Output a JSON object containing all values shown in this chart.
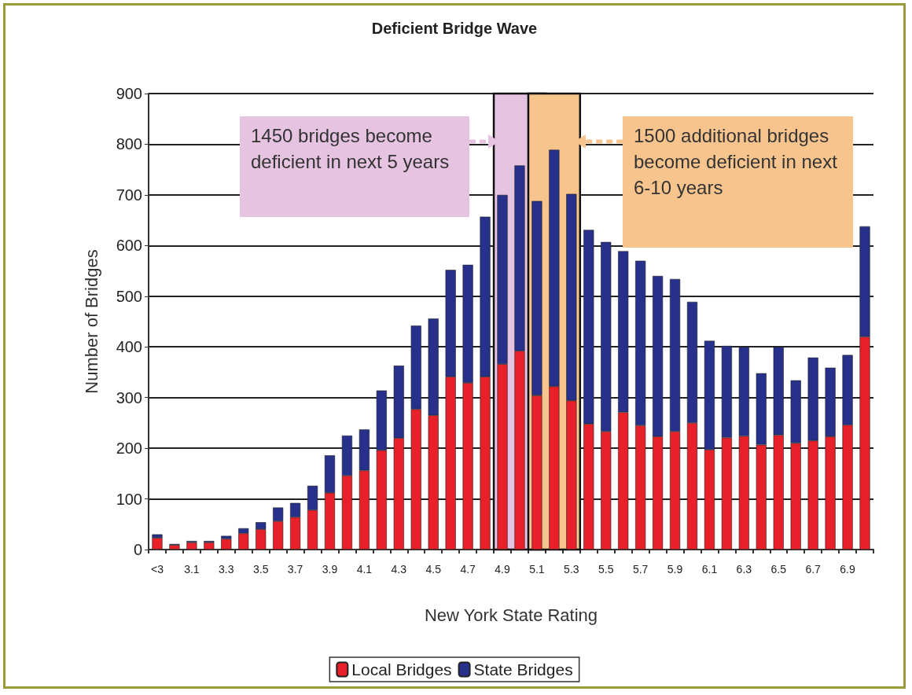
{
  "chart_data": {
    "type": "bar",
    "title": "Deficient Bridge Wave",
    "xlabel": "New York State Rating",
    "ylabel": "Number of Bridges",
    "categories": [
      "<3",
      null,
      "3.1",
      null,
      "3.3",
      null,
      "3.5",
      null,
      "3.7",
      null,
      "3.9",
      null,
      "4.1",
      null,
      "4.3",
      null,
      "4.5",
      null,
      "4.7",
      null,
      "4.9",
      null,
      "5.1",
      null,
      "5.3",
      null,
      "5.5",
      null,
      "5.7",
      null,
      "5.9",
      null,
      "6.1",
      null,
      "6.3",
      null,
      "6.5",
      null,
      "6.7",
      null,
      "6.9",
      null
    ],
    "stacked": true,
    "series": [
      {
        "name": "Local Bridges",
        "color": "#e8202a",
        "values": [
          23,
          9,
          14,
          14,
          21,
          32,
          40,
          56,
          64,
          78,
          112,
          146,
          156,
          196,
          220,
          277,
          265,
          341,
          329,
          341,
          366,
          392,
          304,
          322,
          294,
          248,
          233,
          271,
          245,
          223,
          233,
          250,
          197,
          221,
          224,
          207,
          226,
          210,
          215,
          223,
          246,
          420
        ]
      },
      {
        "name": "State Bridges",
        "color": "#27318b",
        "values": [
          7,
          2,
          3,
          3,
          6,
          10,
          14,
          27,
          28,
          48,
          74,
          79,
          81,
          118,
          143,
          165,
          191,
          211,
          233,
          316,
          334,
          366,
          384,
          467,
          408,
          383,
          374,
          318,
          325,
          317,
          301,
          239,
          215,
          181,
          176,
          141,
          174,
          124,
          164,
          136,
          138,
          218
        ]
      }
    ],
    "ylim": [
      0,
      900
    ],
    "yticks": [
      0,
      100,
      200,
      300,
      400,
      500,
      600,
      700,
      800,
      900
    ],
    "grid": "y",
    "legend": "bottom",
    "bands": [
      {
        "axis": "x",
        "from": "4.9",
        "to": "5.1",
        "color": "#e6c3e0"
      },
      {
        "axis": "x",
        "from": "5.1",
        "to": "5.3",
        "color": "#f7c48e"
      }
    ],
    "annotations": [
      "1450 bridges become deficient in next 5 years",
      "1500 additional bridges become deficient in next  6-10 years"
    ]
  }
}
